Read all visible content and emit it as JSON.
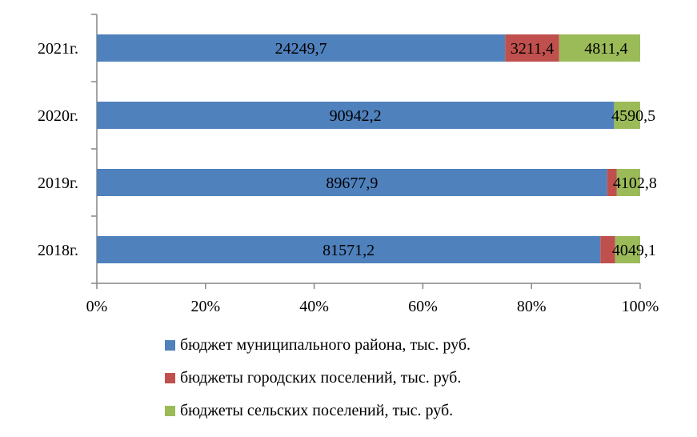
{
  "chart_data": {
    "type": "bar",
    "orientation": "horizontal",
    "stacked": "percent",
    "title": "",
    "categories": [
      "2018г.",
      "2019г.",
      "2020г.",
      "2021г."
    ],
    "series": [
      {
        "name": "бюджет муниципального района, тыс. руб.",
        "color": "#4f81bd",
        "values": [
          81571.2,
          89677.9,
          90942.2,
          24249.7
        ],
        "labels": [
          "81571,2",
          "89677,9",
          "90942,2",
          "24249,7"
        ]
      },
      {
        "name": "бюджеты городских поселений, тыс. руб.",
        "color": "#c0504d",
        "values": [
          2400,
          1700,
          0,
          3211.4
        ],
        "labels": [
          "",
          "",
          "",
          "3211,4"
        ]
      },
      {
        "name": "бюджеты сельских поселений, тыс. руб.",
        "color": "#9bbb59",
        "values": [
          4049.1,
          4102.8,
          4590.5,
          4811.4
        ],
        "labels": [
          "4049,1",
          "4102,8",
          "4590,5",
          "4811,4"
        ]
      }
    ],
    "xaxis": {
      "ticks": [
        "0%",
        "20%",
        "40%",
        "60%",
        "80%",
        "100%"
      ],
      "range": [
        0,
        100
      ]
    },
    "grid": false,
    "legend_position": "bottom"
  }
}
